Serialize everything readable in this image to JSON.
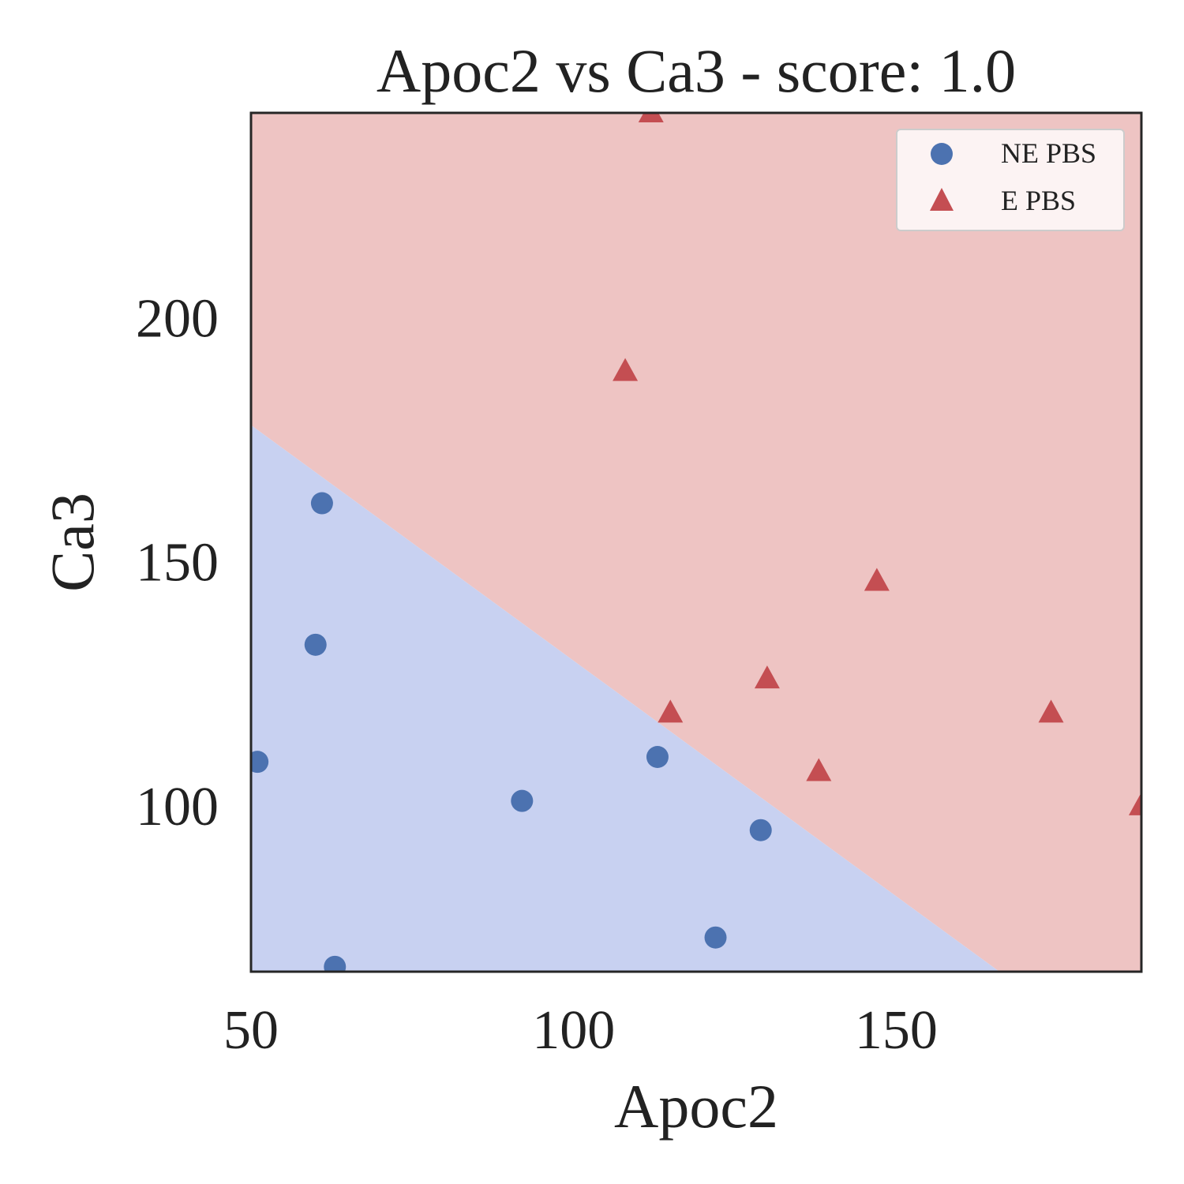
{
  "chart_data": {
    "type": "scatter",
    "title": "Apoc2 vs Ca3 - score: 1.0",
    "xlabel": "Apoc2",
    "ylabel": "Ca3",
    "xlim": [
      50,
      188
    ],
    "ylim": [
      66,
      242
    ],
    "xticks": [
      50,
      100,
      150
    ],
    "yticks": [
      100,
      150,
      200
    ],
    "grid": false,
    "legend_position": "top-right",
    "decision_boundary": {
      "points": [
        [
          50,
          178
        ],
        [
          166,
          66
        ]
      ],
      "region_below_color": "#c8d1f1",
      "region_above_color": "#eec4c3"
    },
    "series": [
      {
        "name": "NE PBS",
        "marker": "circle",
        "color": "#4c72b0",
        "points": [
          [
            61,
            162
          ],
          [
            60,
            133
          ],
          [
            51,
            109
          ],
          [
            113,
            110
          ],
          [
            92,
            101
          ],
          [
            129,
            95
          ],
          [
            122,
            73
          ],
          [
            63,
            67
          ]
        ]
      },
      {
        "name": "E PBS",
        "marker": "triangle",
        "color": "#c44e52",
        "points": [
          [
            112,
            242
          ],
          [
            108,
            189
          ],
          [
            147,
            146
          ],
          [
            130,
            126
          ],
          [
            115,
            119
          ],
          [
            174,
            119
          ],
          [
            138,
            107
          ],
          [
            188,
            100
          ]
        ]
      }
    ]
  }
}
